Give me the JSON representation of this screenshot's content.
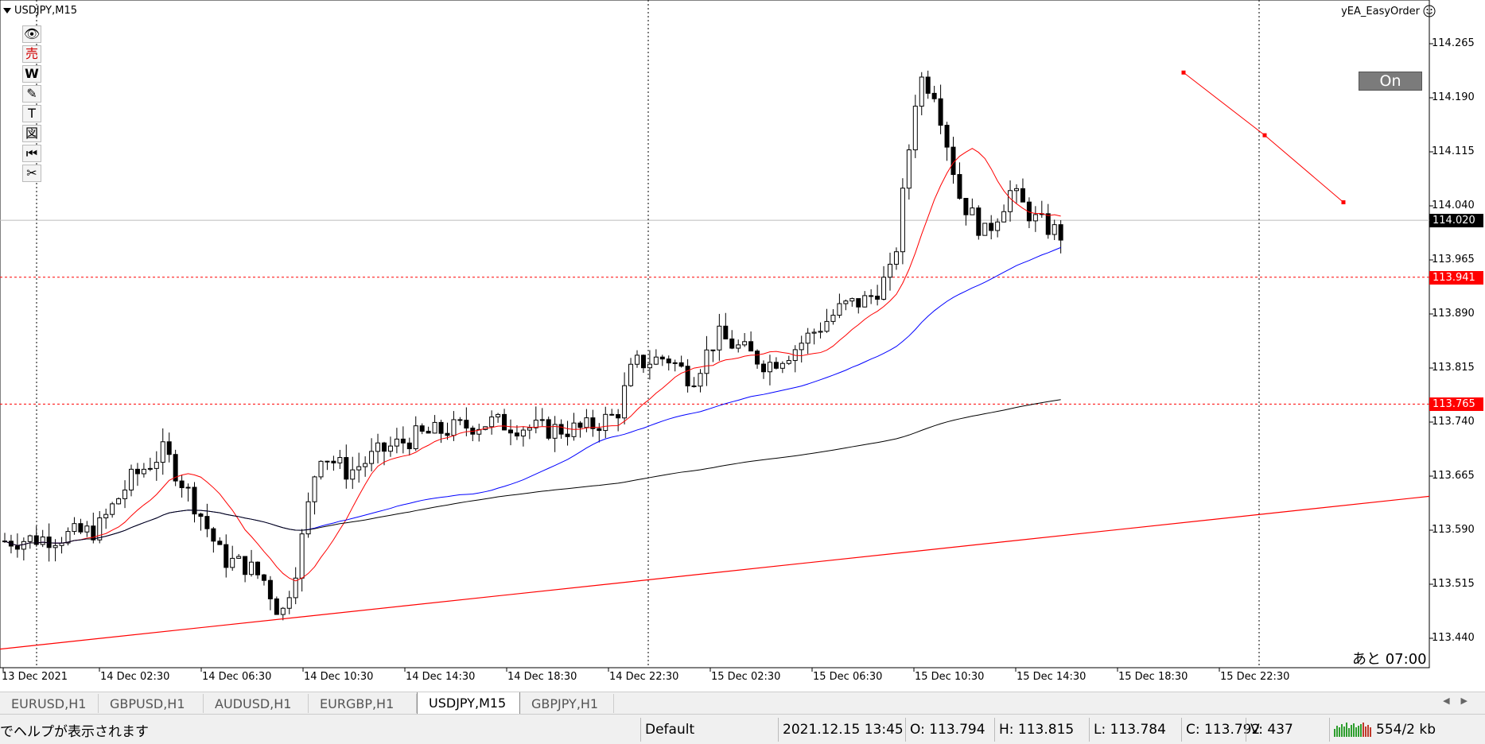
{
  "chart": {
    "symbol_label": "USDJPY,M15",
    "ea_name": "yEA_EasyOrder",
    "ea_icon": "smiley-icon",
    "on_button_label": "On",
    "countdown": "あと 07:00",
    "price_axis": [
      "114.265",
      "114.190",
      "114.115",
      "114.040",
      "113.965",
      "113.890",
      "113.815",
      "113.740",
      "113.665",
      "113.590",
      "113.515",
      "113.440"
    ],
    "current_price": "114.020",
    "alert_levels": [
      {
        "price": "113.941",
        "color": "#ff0000"
      },
      {
        "price": "113.765",
        "color": "#ff0000"
      }
    ],
    "time_axis": [
      "13 Dec 2021",
      "14 Dec 02:30",
      "14 Dec 06:30",
      "14 Dec 10:30",
      "14 Dec 14:30",
      "14 Dec 18:30",
      "14 Dec 22:30",
      "15 Dec 02:30",
      "15 Dec 06:30",
      "15 Dec 10:30",
      "15 Dec 14:30",
      "15 Dec 18:30",
      "15 Dec 22:30"
    ],
    "colors": {
      "bull": "#ffffff",
      "bear": "#000000",
      "ma_fast": "#ff0000",
      "ma_mid": "#0000ff",
      "ma_slow": "#000000",
      "trend": "#ff0000",
      "grid": "#c8c8c8"
    }
  },
  "toolbar": [
    {
      "name": "eye-icon",
      "glyph": "👁"
    },
    {
      "name": "sell-icon",
      "glyph": "売"
    },
    {
      "name": "w-icon",
      "glyph": "W"
    },
    {
      "name": "pencil-icon",
      "glyph": "✎"
    },
    {
      "name": "text-icon",
      "glyph": "T"
    },
    {
      "name": "figure-icon",
      "glyph": "図"
    },
    {
      "name": "rewind-icon",
      "glyph": "⏮"
    },
    {
      "name": "scissors-icon",
      "glyph": "✂"
    }
  ],
  "tabs": [
    {
      "label": "EURUSD,H1",
      "active": false
    },
    {
      "label": "GBPUSD,H1",
      "active": false
    },
    {
      "label": "AUDUSD,H1",
      "active": false
    },
    {
      "label": "EURGBP,H1",
      "active": false
    },
    {
      "label": "USDJPY,M15",
      "active": true
    },
    {
      "label": "GBPJPY,H1",
      "active": false
    }
  ],
  "status": {
    "help": "でヘルプが表示されます",
    "profile": "Default",
    "datetime": "2021.12.15 13:45",
    "open": "O: 113.794",
    "high": "H: 113.815",
    "low": "L: 113.784",
    "close": "C: 113.792",
    "volume": "V: 437",
    "traffic": "554/2 kb"
  }
}
